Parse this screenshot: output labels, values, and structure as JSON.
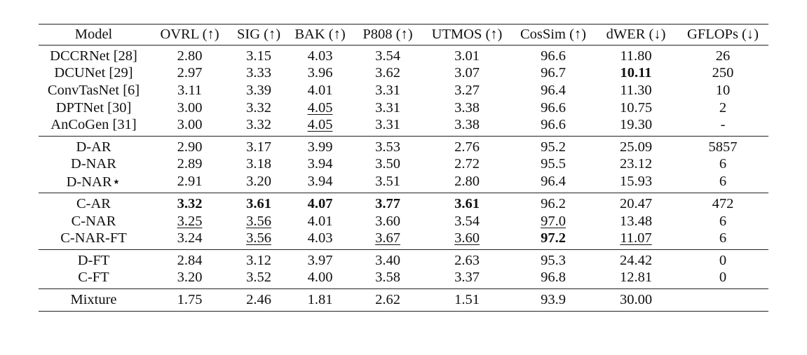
{
  "table": {
    "headers": [
      "Model",
      "OVRL (↑)",
      "SIG (↑)",
      "BAK (↑)",
      "P808 (↑)",
      "UTMOS (↑)",
      "CosSim (↑)",
      "dWER (↓)",
      "GFLOPs (↓)"
    ],
    "groups": [
      [
        [
          "DCCRNet [28]",
          "2.80",
          "3.15",
          "4.03",
          "3.54",
          "3.01",
          "96.6",
          "11.80",
          "26"
        ],
        [
          "DCUNet [29]",
          "2.97",
          "3.33",
          "3.96",
          "3.62",
          "3.07",
          "96.7",
          "10.11",
          "250"
        ],
        [
          "ConvTasNet [6]",
          "3.11",
          "3.39",
          "4.01",
          "3.31",
          "3.27",
          "96.4",
          "11.30",
          "10"
        ],
        [
          "DPTNet [30]",
          "3.00",
          "3.32",
          "4.05",
          "3.31",
          "3.38",
          "96.6",
          "10.75",
          "2"
        ],
        [
          "AnCoGen [31]",
          "3.00",
          "3.32",
          "4.05",
          "3.31",
          "3.38",
          "96.6",
          "19.30",
          "-"
        ]
      ],
      [
        [
          "D-AR",
          "2.90",
          "3.17",
          "3.99",
          "3.53",
          "2.76",
          "95.2",
          "25.09",
          "5857"
        ],
        [
          "D-NAR",
          "2.89",
          "3.18",
          "3.94",
          "3.50",
          "2.72",
          "95.5",
          "23.12",
          "6"
        ],
        [
          "D-NAR⋆",
          "2.91",
          "3.20",
          "3.94",
          "3.51",
          "2.80",
          "96.4",
          "15.93",
          "6"
        ]
      ],
      [
        [
          "C-AR",
          "3.32",
          "3.61",
          "4.07",
          "3.77",
          "3.61",
          "96.2",
          "20.47",
          "472"
        ],
        [
          "C-NAR",
          "3.25",
          "3.56",
          "4.01",
          "3.60",
          "3.54",
          "97.0",
          "13.48",
          "6"
        ],
        [
          "C-NAR-FT",
          "3.24",
          "3.56",
          "4.03",
          "3.67",
          "3.60",
          "97.2",
          "11.07",
          "6"
        ]
      ],
      [
        [
          "D-FT",
          "2.84",
          "3.12",
          "3.97",
          "3.40",
          "2.63",
          "95.3",
          "24.42",
          "0"
        ],
        [
          "C-FT",
          "3.20",
          "3.52",
          "4.00",
          "3.58",
          "3.37",
          "96.8",
          "12.81",
          "0"
        ]
      ],
      [
        [
          "Mixture",
          "1.75",
          "2.46",
          "1.81",
          "2.62",
          "1.51",
          "93.9",
          "30.00",
          ""
        ]
      ]
    ],
    "bold": [
      "0-1-7",
      "2-0-1",
      "2-0-2",
      "2-0-3",
      "2-0-4",
      "2-0-5",
      "2-2-6"
    ],
    "underline": [
      "0-3-3",
      "0-4-3",
      "2-1-1",
      "2-1-2",
      "2-1-6",
      "2-2-2",
      "2-2-4",
      "2-2-5",
      "2-2-7"
    ]
  }
}
